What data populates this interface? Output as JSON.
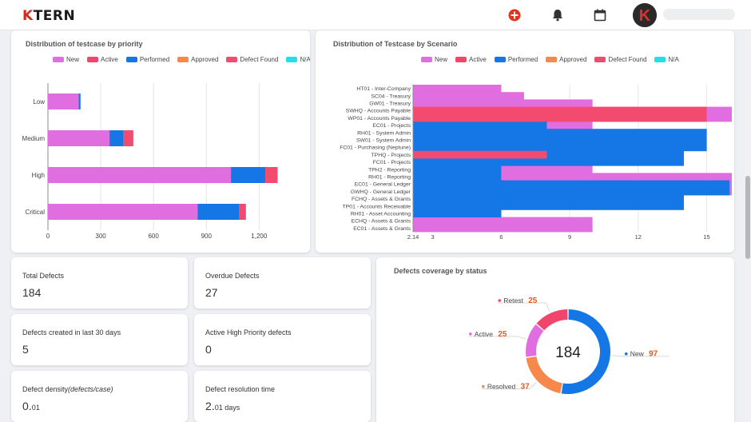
{
  "app": {
    "logo_prefix": "K",
    "logo_rest": "TERN"
  },
  "topbar": {
    "icons": [
      "add-circle-icon",
      "bell-icon",
      "calendar-icon"
    ],
    "avatar_letter": "K"
  },
  "colors": {
    "New": "#e06ee0",
    "Active": "#f2456c",
    "Performed": "#1576e6",
    "Approved": "#f7884c",
    "Defect Found": "#f24b6f",
    "N/A": "#22e0e8"
  },
  "priority_chart": {
    "title": "Distribution of testcase by priority",
    "chart_data": {
      "type": "bar",
      "orientation": "horizontal",
      "stacked": true,
      "categories": [
        "Low",
        "Medium",
        "High",
        "Critical"
      ],
      "series": [
        {
          "name": "New",
          "values": [
            175,
            350,
            1040,
            850
          ]
        },
        {
          "name": "Active",
          "values": [
            0,
            0,
            0,
            0
          ]
        },
        {
          "name": "Performed",
          "values": [
            10,
            80,
            195,
            235
          ]
        },
        {
          "name": "Approved",
          "values": [
            0,
            0,
            0,
            0
          ]
        },
        {
          "name": "Defect Found",
          "values": [
            0,
            55,
            70,
            40
          ]
        },
        {
          "name": "N/A",
          "values": [
            0,
            0,
            0,
            0
          ]
        }
      ],
      "xticks": [
        "0",
        "300",
        "600",
        "900",
        "1,200"
      ],
      "xlim": [
        0,
        1480
      ],
      "grid": true,
      "legend": "top-center"
    }
  },
  "scenario_chart": {
    "title": "Distribution of Testcase by Scenario",
    "chart_data": {
      "type": "bar",
      "orientation": "horizontal",
      "categories": [
        "HT01 - Inter-Company",
        "SC04 - Treasury",
        "GW01 - Treasury",
        "SWHQ - Accounts Payable",
        "WP01 - Accounts Payable",
        "EC01 - Projects",
        "RH01 - System Admin",
        "SW01 - System Admin",
        "FC01 - Purchasing (Neptune)",
        "TPHQ - Projects",
        "FC01 - Projects",
        "TPH2 - Reporting",
        "RH01 - Reporting",
        "EC01 - General Ledger",
        "GWHQ - General Ledger",
        "FCHQ - Assets & Grants",
        "TP01 - Accounts Receivable",
        "RH01 - Asset Accounting",
        "ECHQ - Assets & Grants",
        "EC01 - Assets & Grants"
      ],
      "xticks": [
        "2.14",
        "3",
        "6",
        "9",
        "12",
        "15"
      ],
      "xlim": [
        2.14,
        16.1
      ],
      "step_areas": [
        {
          "name": "New",
          "values": [
            6,
            7,
            10,
            16.1,
            16.1,
            10,
            10,
            10,
            10,
            10,
            10,
            10,
            16.1,
            16.1,
            16.1,
            11,
            6,
            6,
            10,
            10
          ]
        },
        {
          "name": "Performed",
          "values": [
            2.14,
            2.14,
            2.14,
            2.14,
            2.14,
            8,
            15,
            15,
            15,
            14,
            14,
            6,
            6,
            16,
            16,
            14,
            14,
            6,
            2.14,
            2.14
          ]
        },
        {
          "name": "Defect Found",
          "values": [
            2.14,
            2.14,
            2.14,
            15,
            15,
            2.14,
            2.14,
            2.14,
            2.14,
            8,
            2.14,
            2.14,
            2.14,
            2.14,
            2.14,
            2.14,
            2.14,
            2.14,
            2.14,
            2.14
          ]
        }
      ],
      "legend": "top-center"
    }
  },
  "stats": [
    {
      "label": "Total Defects",
      "value": "184",
      "unit": ""
    },
    {
      "label": "Overdue Defects",
      "value": "27",
      "unit": ""
    },
    {
      "label": "Defects created in last 30 days",
      "value": "5",
      "unit": ""
    },
    {
      "label": "Active High Priority defects",
      "value": "0",
      "unit": ""
    },
    {
      "label_main": "Defect density",
      "label_paren": "(defects/case)",
      "value": "0.",
      "unit": "01"
    },
    {
      "label": "Defect resolution time",
      "value": "2.",
      "unit": "01 days"
    }
  ],
  "donut": {
    "title": "Defects coverage by status",
    "total": "184",
    "chart_data": {
      "type": "pie",
      "donut": true,
      "slices": [
        {
          "label": "New",
          "value": 97,
          "color": "#1576e6"
        },
        {
          "label": "Resolved",
          "value": 37,
          "color": "#f7884c"
        },
        {
          "label": "Active",
          "value": 25,
          "color": "#e06ee0"
        },
        {
          "label": "Retest",
          "value": 25,
          "color": "#f2456c"
        }
      ]
    }
  }
}
